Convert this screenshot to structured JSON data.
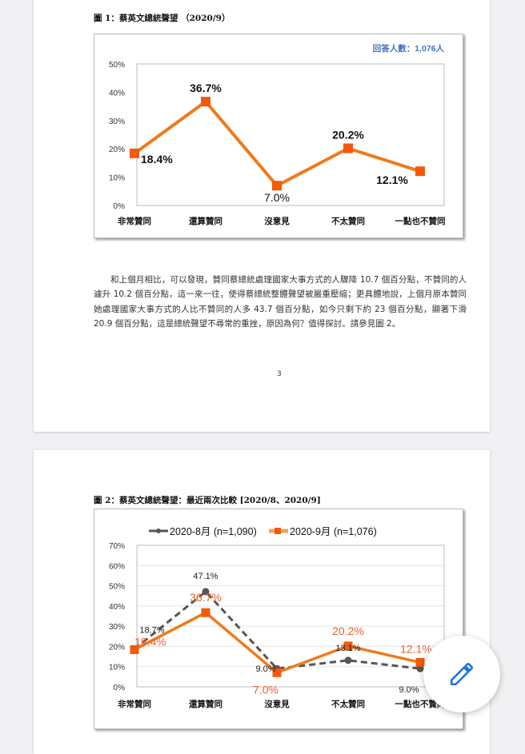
{
  "page1": {
    "figure_title": "圖 1：蔡英文總統聲望 （2020/9）",
    "respondents": "回答人數：1,076人",
    "paragraph": "和上個月相比，可以發現，贊同蔡總統處理國家大事方式的人驟降 10.7 個百分點，不贊同的人遽升 10.2 個百分點，這一來一往，使得蔡總統整體聲望被嚴重壓縮；更具體地說，上個月原本贊同她處理國家大事方式的人比不贊同的人多 43.7 個百分點，如今只剩下約 23 個百分點，顯著下滑 20.9 個百分點，這是總統聲望不尋常的重挫，原因為何？值得探討。請參見圖 2。",
    "page_number": "3"
  },
  "page2": {
    "figure_title": "圖 2：蔡英文總統聲望：最近兩次比較 [2020/8、2020/9]"
  },
  "fab": {
    "icon": "pencil-icon",
    "color": "#1a73e8"
  },
  "chart_data": [
    {
      "type": "line",
      "categories": [
        "非常贊同",
        "還算贊同",
        "沒意見",
        "不太贊同",
        "一點也不贊同"
      ],
      "series": [
        {
          "values": [
            18.4,
            36.7,
            7.0,
            20.2,
            12.1
          ],
          "color": "#f07a1a"
        }
      ],
      "data_labels": [
        "18.4%",
        "36.7%",
        "7.0%",
        "20.2%",
        "12.1%"
      ],
      "yticks": [
        "0%",
        "10%",
        "20%",
        "30%",
        "40%",
        "50%"
      ],
      "ylim": [
        0,
        50
      ],
      "grid": false
    },
    {
      "type": "line",
      "categories": [
        "非常贊同",
        "還算贊同",
        "沒意見",
        "不太贊同",
        "一點也不贊同"
      ],
      "series": [
        {
          "name": "2020-8月 (n=1,090)",
          "values": [
            18.7,
            47.1,
            9.0,
            13.1,
            9.0
          ],
          "color": "#555555",
          "dashed": true,
          "data_labels": [
            "18.7%",
            "47.1%",
            "9.0%",
            "13.1%",
            "9.0%"
          ]
        },
        {
          "name": "2020-9月 (n=1,076)",
          "values": [
            18.4,
            36.7,
            7.0,
            20.2,
            12.1
          ],
          "color": "#f07a1a",
          "dashed": false,
          "data_labels": [
            "18.4%",
            "36.7%",
            "7.0%",
            "20.2%",
            "12.1%"
          ]
        }
      ],
      "yticks": [
        "0%",
        "10%",
        "20%",
        "30%",
        "40%",
        "50%",
        "60%",
        "70%"
      ],
      "ylim": [
        0,
        70
      ],
      "grid": true,
      "legend": "top"
    }
  ]
}
